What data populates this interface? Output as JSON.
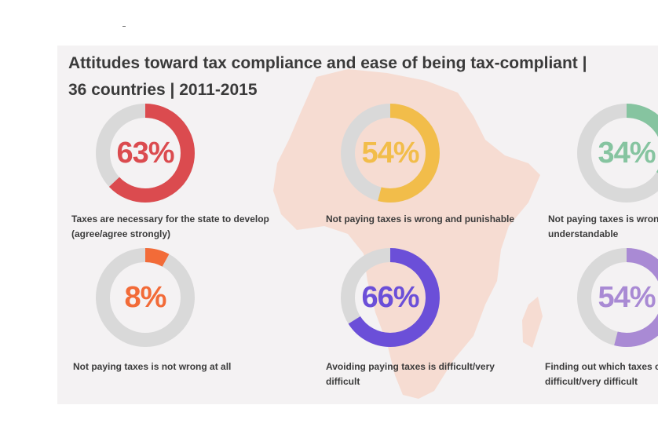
{
  "title_line1": "Attitudes toward tax compliance and ease of being tax-compliant |",
  "title_line2": "36 countries | 2011-2015",
  "colors": {
    "track": "#d9d9d9",
    "background": "#f4f2f3",
    "map": "#f6dcd2"
  },
  "chart_data": {
    "type": "donut",
    "title": "Attitudes toward tax compliance and ease of being tax-compliant | 36 countries | 2011-2015",
    "max": 100,
    "items": [
      {
        "value": 63,
        "label": "63%",
        "color": "#db4b4f",
        "caption_line1": "Taxes are necessary for the state to develop",
        "caption_line2": "(agree/agree strongly)"
      },
      {
        "value": 54,
        "label": "54%",
        "color": "#f2bd4a",
        "caption_line1": "Not paying taxes is wrong and punishable",
        "caption_line2": ""
      },
      {
        "value": 34,
        "label": "34%",
        "color": "#86c4a0",
        "caption_line1": "Not paying taxes is wrong",
        "caption_line2": "understandable"
      },
      {
        "value": 8,
        "label": "8%",
        "color": "#f26b38",
        "caption_line1": "Not paying taxes is not wrong at all",
        "caption_line2": ""
      },
      {
        "value": 66,
        "label": "66%",
        "color": "#6b4fd8",
        "caption_line1": "Avoiding paying taxes is difficult/very",
        "caption_line2": "difficult"
      },
      {
        "value": 54,
        "label": "54%",
        "color": "#a98ad4",
        "caption_line1": "Finding out which taxes or",
        "caption_line2": "difficult/very difficult"
      }
    ]
  }
}
